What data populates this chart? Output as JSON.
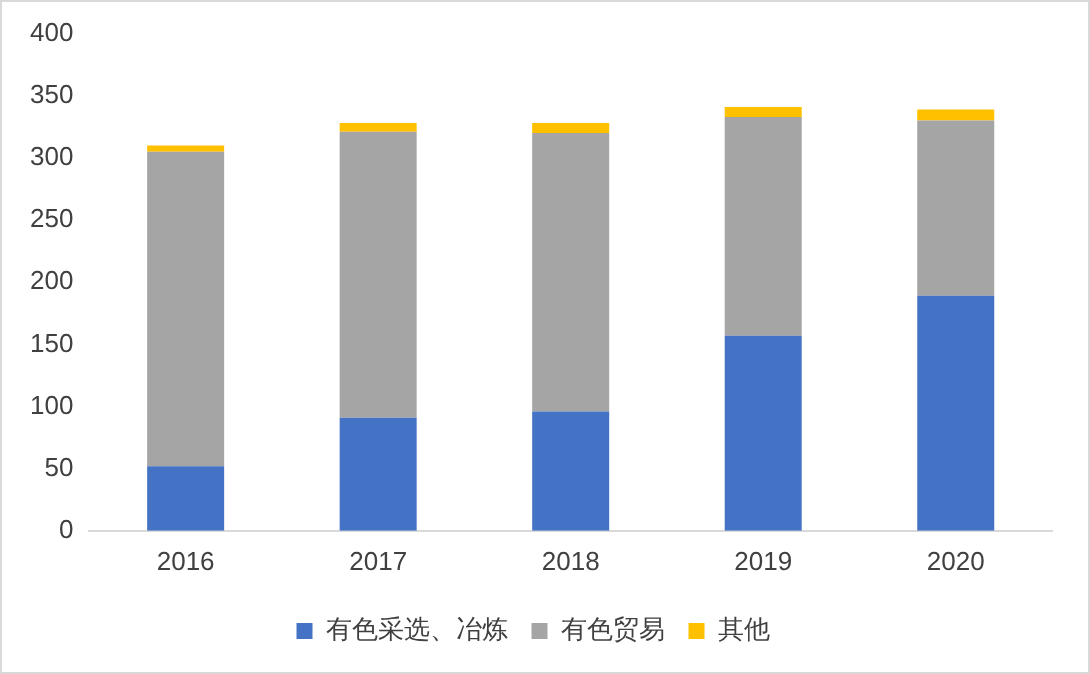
{
  "chart_data": {
    "type": "bar",
    "stacked": true,
    "categories": [
      "2016",
      "2017",
      "2018",
      "2019",
      "2020"
    ],
    "series": [
      {
        "name": "有色采选、冶炼",
        "color": "#4472c4",
        "values": [
          52,
          91,
          96,
          157,
          189
        ]
      },
      {
        "name": "有色贸易",
        "color": "#a5a5a5",
        "values": [
          253,
          230,
          224,
          176,
          141
        ]
      },
      {
        "name": "其他",
        "color": "#ffc000",
        "values": [
          5,
          7,
          8,
          8,
          9
        ]
      }
    ],
    "ylim": [
      0,
      400
    ],
    "yticks": [
      0,
      50,
      100,
      150,
      200,
      250,
      300,
      350,
      400
    ],
    "grid": false,
    "legend": "bottom"
  }
}
